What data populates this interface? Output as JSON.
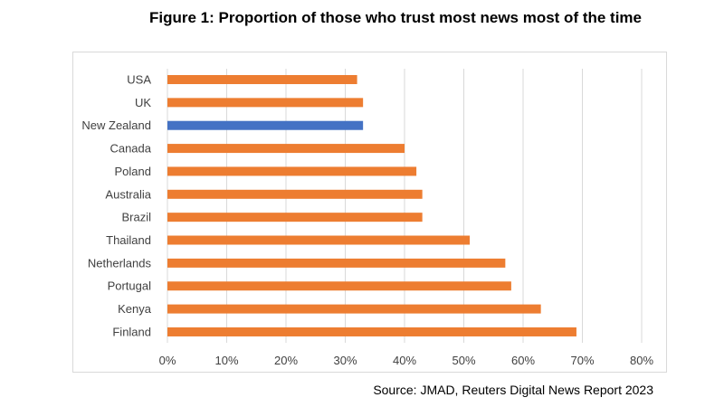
{
  "title": "Figure 1: Proportion of those who trust most news most of the time",
  "source": "Source: JMAD, Reuters Digital News Report 2023",
  "colors": {
    "default_bar": "#ED7D31",
    "highlight_bar": "#4472C4",
    "gridline": "#d9d9d9",
    "text": "#404040"
  },
  "chart_data": {
    "type": "bar",
    "orientation": "horizontal",
    "title": "Figure 1: Proportion of those who trust most news most of the time",
    "xlabel": "",
    "ylabel": "",
    "xlim": [
      0,
      80
    ],
    "xticks": [
      0,
      10,
      20,
      30,
      40,
      50,
      60,
      70,
      80
    ],
    "xtick_labels": [
      "0%",
      "10%",
      "20%",
      "30%",
      "40%",
      "50%",
      "60%",
      "70%",
      "80%"
    ],
    "grid": true,
    "categories": [
      "USA",
      "UK",
      "New Zealand",
      "Canada",
      "Poland",
      "Australia",
      "Brazil",
      "Thailand",
      "Netherlands",
      "Portugal",
      "Kenya",
      "Finland"
    ],
    "values": [
      32,
      33,
      33,
      40,
      42,
      43,
      43,
      51,
      57,
      58,
      63,
      69
    ],
    "highlight": "New Zealand"
  }
}
